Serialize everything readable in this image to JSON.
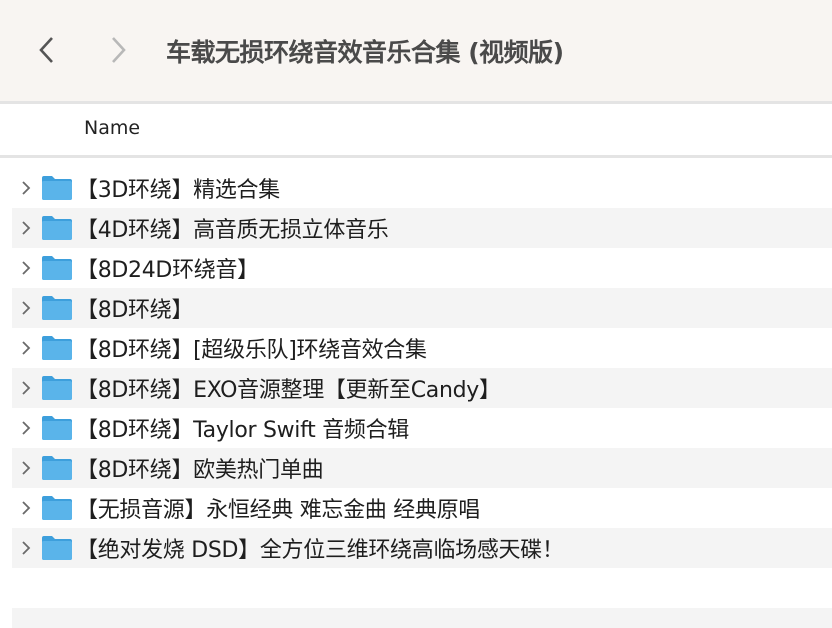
{
  "toolbar": {
    "back_icon": "chevron-left-icon",
    "forward_icon": "chevron-right-icon",
    "title": "车载无损环绕音效音乐合集 (视频版)"
  },
  "columns": {
    "name": "Name"
  },
  "colors": {
    "folder": "#5ab4ea",
    "toolbar_bg": "#f8f5f2",
    "alt_row": "#f4f4f4"
  },
  "items": [
    {
      "label": "【3D环绕】精选合集",
      "icon": "folder-icon"
    },
    {
      "label": "【4D环绕】高音质无损立体音乐",
      "icon": "folder-icon"
    },
    {
      "label": "【8D24D环绕音】",
      "icon": "folder-icon"
    },
    {
      "label": "【8D环绕】",
      "icon": "folder-icon"
    },
    {
      "label": "【8D环绕】[超级乐队]环绕音效合集",
      "icon": "folder-icon"
    },
    {
      "label": "【8D环绕】EXO音源整理【更新至Candy】",
      "icon": "folder-icon"
    },
    {
      "label": "【8D环绕】Taylor Swift 音频合辑",
      "icon": "folder-icon"
    },
    {
      "label": "【8D环绕】欧美热门单曲",
      "icon": "folder-icon"
    },
    {
      "label": "【无损音源】永恒经典 难忘金曲 经典原唱",
      "icon": "folder-icon"
    },
    {
      "label": "【绝对发烧 DSD】全方位三维环绕高临场感天碟！",
      "icon": "folder-icon"
    }
  ]
}
